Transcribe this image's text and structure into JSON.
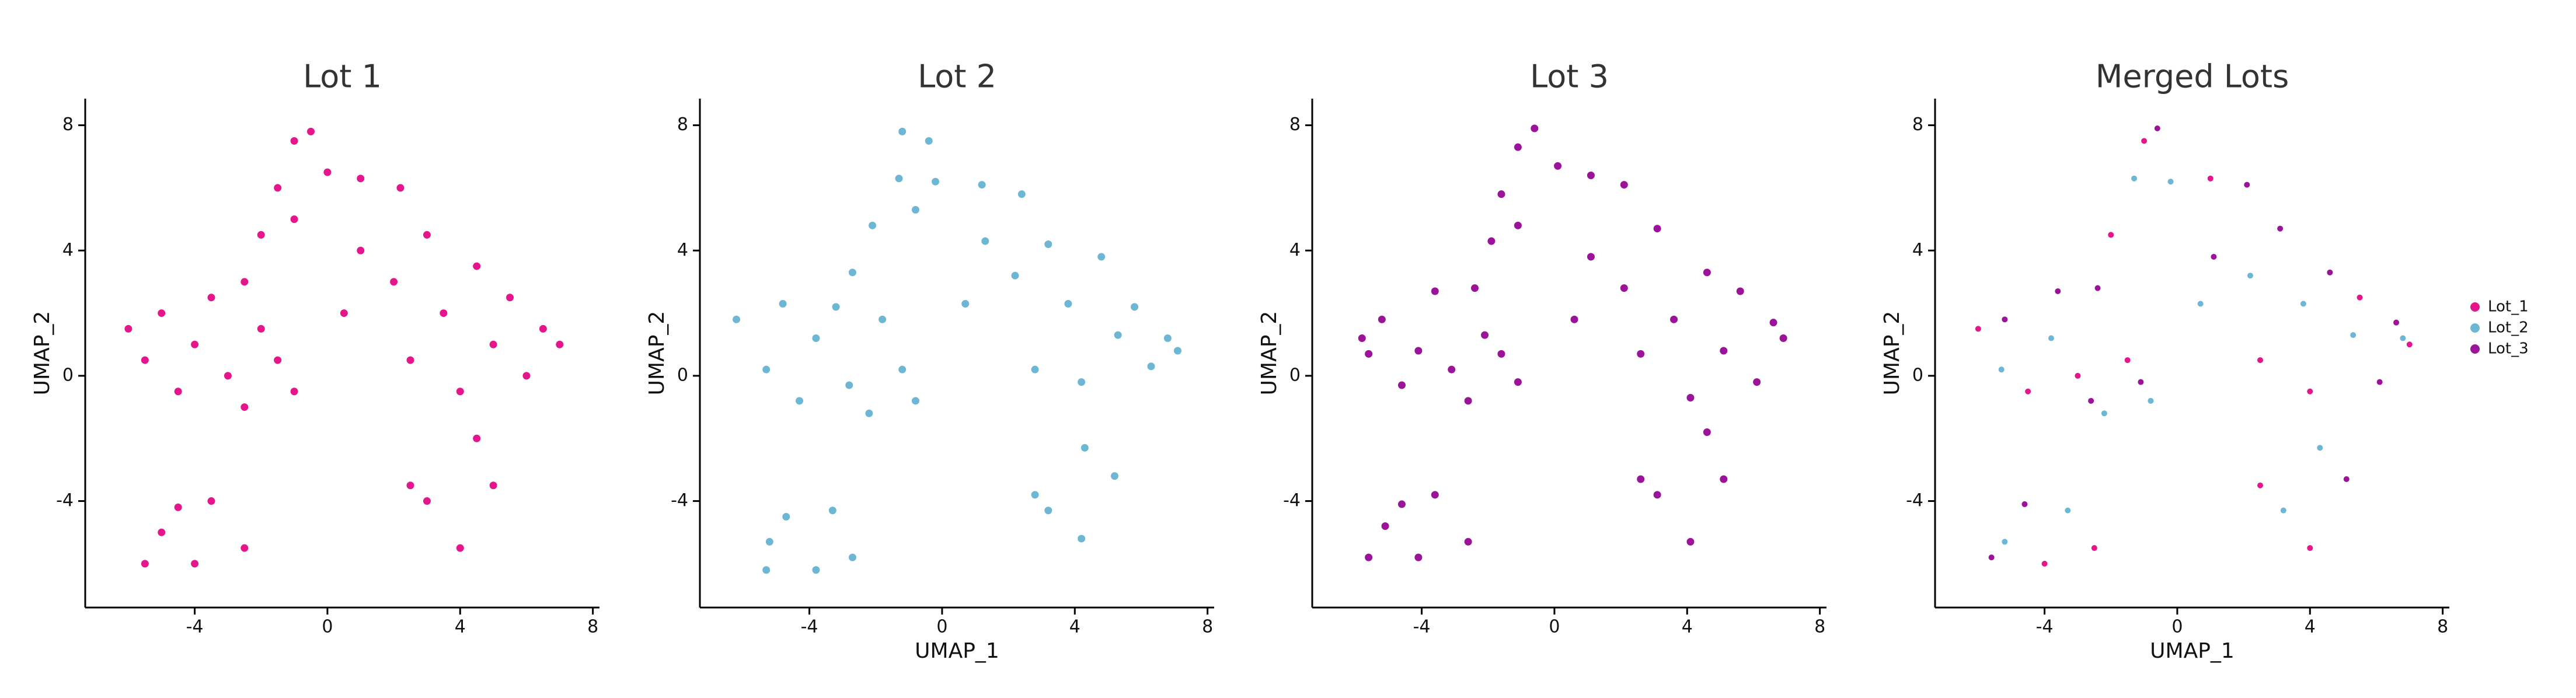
{
  "chart_data": [
    {
      "type": "scatter",
      "title": "Lot 1",
      "ylabel": "UMAP_2",
      "xlim": [
        -7.3,
        8.2
      ],
      "ylim": [
        -7.4,
        8.85
      ],
      "xticks": [
        -4,
        0,
        4,
        8
      ],
      "yticks": [
        -4,
        0,
        4,
        8
      ],
      "series": [
        {
          "color": "#e5168b",
          "x": [
            -6,
            -5.5,
            -5,
            -4.5,
            -4,
            -3.5,
            -3,
            -2.5,
            -2,
            -1.5,
            -1,
            -2.5,
            -2,
            -1.5,
            -1,
            -0.5,
            0,
            -1,
            1,
            2.2,
            0.5,
            1,
            2,
            2.5,
            3,
            3.5,
            4,
            4.5,
            5,
            5.5,
            6,
            6.5,
            7,
            -5,
            -4,
            -3.5,
            -2.5,
            -4.5,
            3,
            4,
            5,
            4.5,
            2.5,
            -5.5
          ],
          "y": [
            1.5,
            0.5,
            2,
            -0.5,
            1,
            2.5,
            0,
            -1,
            1.5,
            0.5,
            -0.5,
            3,
            4.5,
            6,
            7.5,
            7.8,
            6.5,
            5,
            6.3,
            6,
            2,
            4,
            3,
            0.5,
            4.5,
            2,
            -0.5,
            3.5,
            1,
            2.5,
            0,
            1.5,
            1,
            -5,
            -6,
            -4,
            -5.5,
            -4.2,
            -4,
            -5.5,
            -3.5,
            -2,
            -3.5,
            -6
          ]
        }
      ]
    },
    {
      "type": "scatter",
      "title": "Lot 2",
      "xlabel": "UMAP_1",
      "ylabel": "UMAP_2",
      "xlim": [
        -7.3,
        8.2
      ],
      "ylim": [
        -7.4,
        8.85
      ],
      "xticks": [
        -4,
        0,
        4,
        8
      ],
      "yticks": [
        -4,
        0,
        4,
        8
      ],
      "series": [
        {
          "color": "#6db7d5",
          "x": [
            -6.2,
            -5.3,
            -4.8,
            -4.3,
            -3.8,
            -3.2,
            -2.8,
            -2.2,
            -1.8,
            -1.2,
            -0.8,
            -2.7,
            -2.1,
            -1.3,
            -1.2,
            -0.4,
            -0.2,
            -0.8,
            1.2,
            2.4,
            0.7,
            1.3,
            2.2,
            2.8,
            3.2,
            3.8,
            4.2,
            4.8,
            5.3,
            5.8,
            6.3,
            6.8,
            7.1,
            -5.2,
            -3.8,
            -3.3,
            -2.7,
            -4.7,
            3.2,
            4.2,
            5.2,
            4.3,
            2.8,
            -5.3
          ],
          "y": [
            1.8,
            0.2,
            2.3,
            -0.8,
            1.2,
            2.2,
            -0.3,
            -1.2,
            1.8,
            0.2,
            -0.8,
            3.3,
            4.8,
            6.3,
            7.8,
            7.5,
            6.2,
            5.3,
            6.1,
            5.8,
            2.3,
            4.3,
            3.2,
            0.2,
            4.2,
            2.3,
            -0.2,
            3.8,
            1.3,
            2.2,
            0.3,
            1.2,
            0.8,
            -5.3,
            -6.2,
            -4.3,
            -5.8,
            -4.5,
            -4.3,
            -5.2,
            -3.2,
            -2.3,
            -3.8,
            -6.2
          ]
        }
      ]
    },
    {
      "type": "scatter",
      "title": "Lot 3",
      "ylabel": "UMAP_2",
      "xlim": [
        -7.3,
        8.2
      ],
      "ylim": [
        -7.4,
        8.85
      ],
      "xticks": [
        -4,
        0,
        4,
        8
      ],
      "yticks": [
        -4,
        0,
        4,
        8
      ],
      "series": [
        {
          "color": "#9b1398",
          "x": [
            -5.8,
            -5.6,
            -5.2,
            -4.6,
            -4.1,
            -3.6,
            -3.1,
            -2.6,
            -2.1,
            -1.6,
            -1.1,
            -2.4,
            -1.9,
            -1.6,
            -1.1,
            -0.6,
            0.1,
            -1.1,
            1.1,
            2.1,
            0.6,
            1.1,
            2.1,
            2.6,
            3.1,
            3.6,
            4.1,
            4.6,
            5.1,
            5.6,
            6.1,
            6.6,
            6.9,
            -5.1,
            -4.1,
            -3.6,
            -2.6,
            -4.6,
            3.1,
            4.1,
            5.1,
            4.6,
            2.6,
            -5.6
          ],
          "y": [
            1.2,
            0.7,
            1.8,
            -0.3,
            0.8,
            2.7,
            0.2,
            -0.8,
            1.3,
            0.7,
            -0.2,
            2.8,
            4.3,
            5.8,
            7.3,
            7.9,
            6.7,
            4.8,
            6.4,
            6.1,
            1.8,
            3.8,
            2.8,
            0.7,
            4.7,
            1.8,
            -0.7,
            3.3,
            0.8,
            2.7,
            -0.2,
            1.7,
            1.2,
            -4.8,
            -5.8,
            -3.8,
            -5.3,
            -4.1,
            -3.8,
            -5.3,
            -3.3,
            -1.8,
            -3.3,
            -5.8
          ]
        }
      ]
    },
    {
      "type": "scatter",
      "title": "Merged Lots",
      "xlabel": "UMAP_1",
      "ylabel": "UMAP_2",
      "xlim": [
        -7.3,
        8.2
      ],
      "ylim": [
        -7.4,
        8.85
      ],
      "xticks": [
        -4,
        0,
        4,
        8
      ],
      "yticks": [
        -4,
        0,
        4,
        8
      ],
      "series": [
        {
          "name": "Lot_1",
          "color": "#e5168b",
          "x": [
            -6,
            -4.5,
            -3,
            -1.5,
            -2,
            -1,
            1,
            2.5,
            4,
            5.5,
            7,
            -4,
            -2.5,
            4,
            2.5
          ],
          "y": [
            1.5,
            -0.5,
            0,
            0.5,
            4.5,
            7.5,
            6.3,
            0.5,
            -0.5,
            2.5,
            1,
            -6,
            -5.5,
            -5.5,
            -3.5
          ]
        },
        {
          "name": "Lot_2",
          "color": "#6db7d5",
          "x": [
            -5.3,
            -3.8,
            -2.2,
            -0.8,
            -1.3,
            -0.2,
            0.7,
            2.2,
            3.8,
            5.3,
            6.8,
            -5.2,
            -3.3,
            3.2,
            4.3
          ],
          "y": [
            0.2,
            1.2,
            -1.2,
            -0.8,
            6.3,
            6.2,
            2.3,
            3.2,
            2.3,
            1.3,
            1.2,
            -5.3,
            -4.3,
            -4.3,
            -2.3
          ]
        },
        {
          "name": "Lot_3",
          "color": "#9b1398",
          "x": [
            -5.2,
            -3.6,
            -2.6,
            -2.4,
            -0.6,
            2.1,
            1.1,
            3.1,
            4.6,
            6.1,
            6.6,
            -4.6,
            -5.6,
            5.1,
            -1.1
          ],
          "y": [
            1.8,
            2.7,
            -0.8,
            2.8,
            7.9,
            6.1,
            3.8,
            4.7,
            3.3,
            -0.2,
            1.7,
            -4.1,
            -5.8,
            -3.3,
            -0.2
          ]
        }
      ]
    }
  ]
}
